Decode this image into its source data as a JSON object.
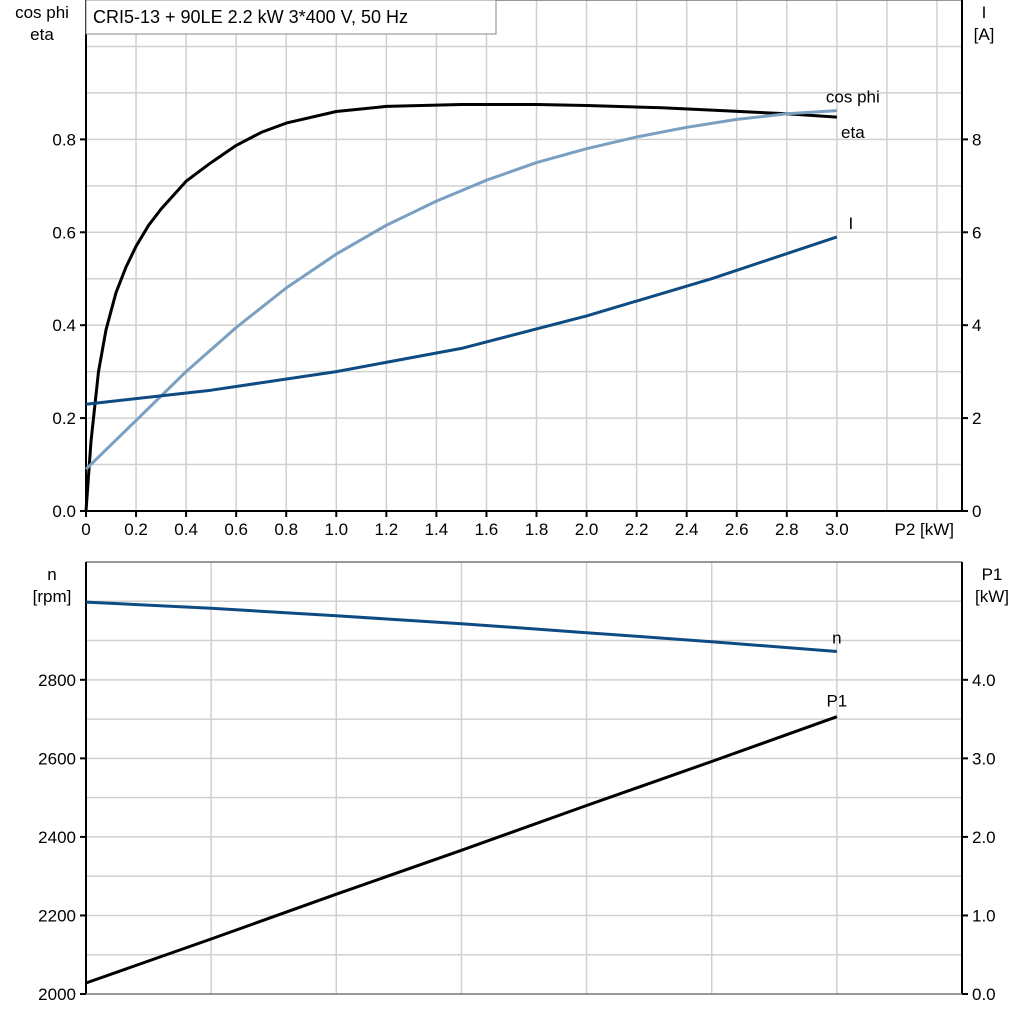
{
  "title": "CRI5-13 + 90LE   2.2 kW   3*400 V, 50 Hz",
  "chart_data": [
    {
      "type": "line",
      "xlabel": "P2 [kW]",
      "ylabel_left": [
        "cos phi",
        "eta"
      ],
      "ylabel_right": [
        "I",
        "[A]"
      ],
      "xlim": [
        0,
        3.5
      ],
      "ylim_left": [
        0,
        1.1
      ],
      "ylim_right": [
        0,
        11
      ],
      "grid": true,
      "x_ticks": [
        "0",
        "0.2",
        "0.4",
        "0.6",
        "0.8",
        "1.0",
        "1.2",
        "1.4",
        "1.6",
        "1.8",
        "2.0",
        "2.2",
        "2.4",
        "2.6",
        "2.8",
        "3.0"
      ],
      "y_ticks_left": [
        "0.0",
        "0.2",
        "0.4",
        "0.6",
        "0.8"
      ],
      "y_ticks_right": [
        "0",
        "2",
        "4",
        "6",
        "8"
      ],
      "series": [
        {
          "name": "eta",
          "axis": "left",
          "color": "#000000",
          "x": [
            0,
            0.02,
            0.05,
            0.08,
            0.12,
            0.16,
            0.2,
            0.25,
            0.3,
            0.35,
            0.4,
            0.5,
            0.6,
            0.7,
            0.8,
            1.0,
            1.2,
            1.5,
            1.8,
            2.0,
            2.3,
            2.5,
            2.8,
            3.0
          ],
          "y": [
            0,
            0.15,
            0.3,
            0.39,
            0.47,
            0.525,
            0.57,
            0.615,
            0.65,
            0.68,
            0.71,
            0.75,
            0.787,
            0.815,
            0.835,
            0.86,
            0.871,
            0.875,
            0.875,
            0.873,
            0.868,
            0.863,
            0.855,
            0.848
          ]
        },
        {
          "name": "cos phi",
          "axis": "left",
          "color": "#7a9fc0",
          "x": [
            0,
            0.2,
            0.4,
            0.6,
            0.8,
            1.0,
            1.2,
            1.4,
            1.6,
            1.8,
            2.0,
            2.2,
            2.4,
            2.6,
            2.8,
            3.0
          ],
          "y": [
            0.09,
            0.195,
            0.3,
            0.395,
            0.48,
            0.553,
            0.615,
            0.667,
            0.712,
            0.75,
            0.78,
            0.805,
            0.826,
            0.843,
            0.855,
            0.862
          ]
        },
        {
          "name": "I",
          "axis": "right",
          "color": "#0e4b82",
          "x": [
            0,
            0.5,
            1.0,
            1.5,
            2.0,
            2.5,
            3.0
          ],
          "y": [
            2.3,
            2.6,
            3.0,
            3.5,
            4.2,
            5.0,
            5.9
          ]
        }
      ]
    },
    {
      "type": "line",
      "ylabel_left": [
        "n",
        "[rpm]"
      ],
      "ylabel_right": [
        "P1",
        "[kW]"
      ],
      "xlim": [
        0,
        3.5
      ],
      "ylim_left": [
        2000,
        3100
      ],
      "ylim_right": [
        0,
        5.5
      ],
      "grid": true,
      "y_ticks_left": [
        "2000",
        "2200",
        "2400",
        "2600",
        "2800"
      ],
      "y_ticks_right": [
        "0.0",
        "1.0",
        "2.0",
        "3.0",
        "4.0"
      ],
      "series": [
        {
          "name": "n",
          "axis": "left",
          "color": "#0e4b82",
          "x": [
            0,
            0.5,
            1.0,
            1.5,
            2.0,
            2.5,
            3.0
          ],
          "y": [
            2998,
            2982,
            2963,
            2943,
            2920,
            2897,
            2872
          ]
        },
        {
          "name": "P1",
          "axis": "right",
          "color": "#000000",
          "x": [
            0,
            0.5,
            1.0,
            1.5,
            2.0,
            2.5,
            3.0
          ],
          "y": [
            0.14,
            0.7,
            1.27,
            1.83,
            2.4,
            2.96,
            3.53
          ]
        }
      ]
    }
  ]
}
